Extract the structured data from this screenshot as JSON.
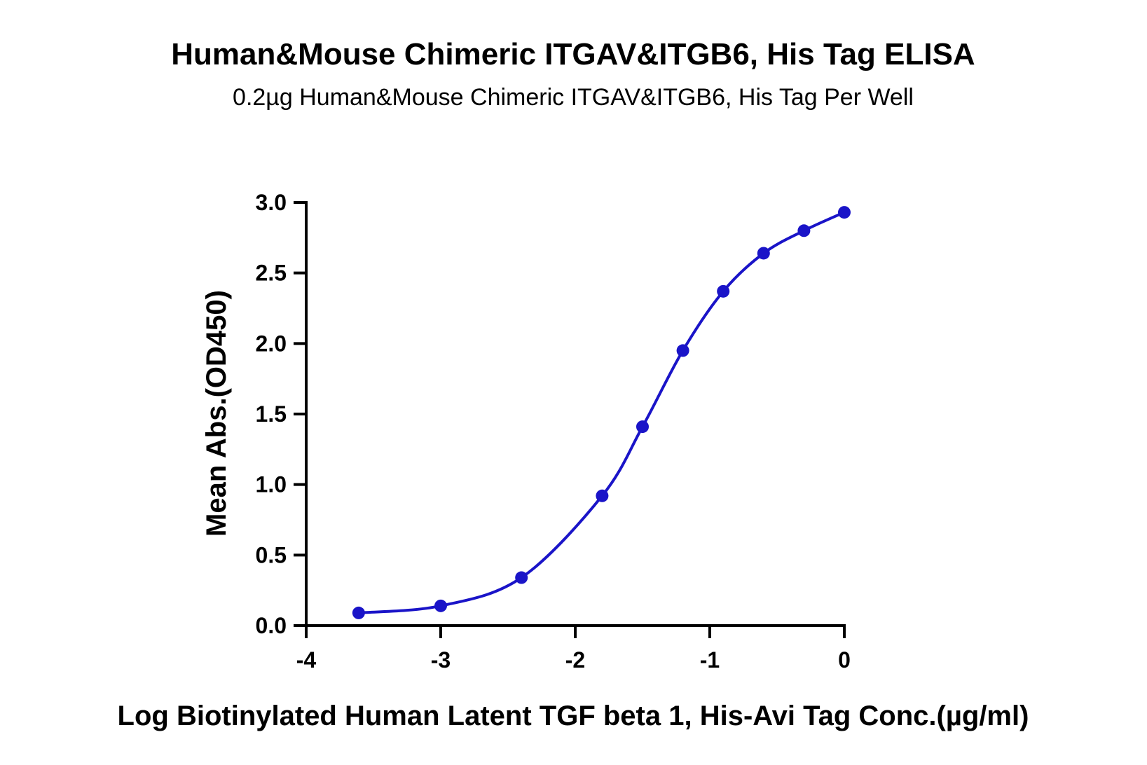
{
  "chart_data": {
    "type": "line",
    "title": "Human&Mouse Chimeric ITGAV&ITGB6, His Tag ELISA",
    "subtitle": "0.2µg Human&Mouse Chimeric ITGAV&ITGB6, His Tag Per Well",
    "xlabel": "Log Biotinylated Human Latent TGF beta 1, His-Avi Tag Conc.(µg/ml)",
    "ylabel": "Mean Abs.(OD450)",
    "xlim": [
      -4,
      0
    ],
    "ylim": [
      0,
      3
    ],
    "xticks": [
      -4,
      -3,
      -2,
      -1,
      0
    ],
    "xtick_labels": [
      "-4",
      "-3",
      "-2",
      "-1",
      "0"
    ],
    "yticks": [
      0,
      0.5,
      1,
      1.5,
      2,
      2.5,
      3
    ],
    "ytick_labels": [
      "0.0",
      "0.5",
      "1.0",
      "1.5",
      "2.0",
      "2.5",
      "3.0"
    ],
    "grid": false,
    "series": [
      {
        "color": "#1a14c8",
        "x": [
          -3.61,
          -3.0,
          -2.4,
          -1.8,
          -1.5,
          -1.2,
          -0.9,
          -0.6,
          -0.3,
          0.0
        ],
        "y": [
          0.09,
          0.14,
          0.34,
          0.92,
          1.41,
          1.95,
          2.37,
          2.64,
          2.8,
          2.93
        ]
      }
    ]
  }
}
